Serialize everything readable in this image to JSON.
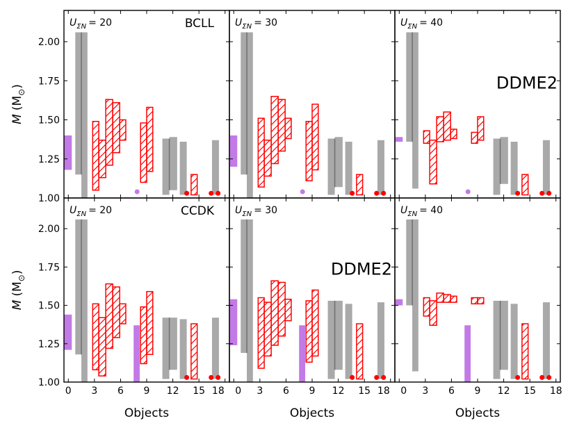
{
  "chart_data": {
    "type": "bar",
    "figure": {
      "xlabel": "Objects",
      "ylabel_main": "M",
      "ylabel_units": "(M",
      "ylabel_sub": "⊙",
      "ylabel_close": ")",
      "xlim": [
        -0.5,
        18.5
      ],
      "ylim": [
        1.0,
        2.2
      ],
      "xticks": [
        0,
        3,
        6,
        9,
        12,
        15,
        18
      ],
      "yticks": [
        1.0,
        1.25,
        1.5,
        1.75,
        2.0
      ],
      "ytick_labels": [
        "1.00",
        "1.25",
        "1.50",
        "1.75",
        "2.00"
      ],
      "model_label": "DDME2",
      "colors": {
        "gray": "#a9a9a9",
        "gray_mid": "#6f6f6f",
        "purple": "#c27ae6",
        "red": "#ff0000"
      }
    },
    "panels": [
      {
        "row": 0,
        "col": 0,
        "u_prefix": "U",
        "u_sub": "ΣN",
        "u_value": "= 20",
        "tag": "BCLL",
        "show_model": false,
        "gray_bars": [
          [
            0.8,
            1.5,
            1.15,
            2.06
          ],
          [
            1.5,
            2.2,
            1.0,
            2.06
          ],
          [
            10.8,
            11.6,
            1.02,
            1.38
          ],
          [
            11.6,
            12.5,
            1.05,
            1.39
          ],
          [
            12.8,
            13.6,
            1.02,
            1.36
          ],
          [
            16.5,
            17.3,
            1.02,
            1.37
          ]
        ],
        "purple_bars": [
          [
            -0.5,
            0.4,
            1.18,
            1.4
          ]
        ],
        "red_boxes": [
          [
            2.8,
            3.5,
            1.05,
            1.49
          ],
          [
            3.5,
            4.3,
            1.13,
            1.37
          ],
          [
            4.3,
            5.1,
            1.21,
            1.63
          ],
          [
            5.1,
            5.9,
            1.29,
            1.61
          ],
          [
            5.9,
            6.6,
            1.37,
            1.5
          ],
          [
            8.3,
            9.0,
            1.1,
            1.48
          ],
          [
            9.0,
            9.7,
            1.17,
            1.58
          ],
          [
            14.1,
            14.8,
            1.02,
            1.15
          ]
        ],
        "purple_dots": [
          [
            7.9,
            1.04
          ]
        ],
        "red_dots": [
          [
            13.6,
            1.03
          ],
          [
            16.4,
            1.03
          ],
          [
            17.2,
            1.03
          ]
        ]
      },
      {
        "row": 0,
        "col": 1,
        "u_prefix": "U",
        "u_sub": "ΣN",
        "u_value": "= 30",
        "tag": "",
        "show_model": false,
        "gray_bars": [
          [
            0.8,
            1.5,
            1.15,
            2.06
          ],
          [
            1.5,
            2.2,
            1.0,
            2.06
          ],
          [
            10.8,
            11.6,
            1.02,
            1.38
          ],
          [
            11.6,
            12.5,
            1.07,
            1.39
          ],
          [
            12.8,
            13.6,
            1.02,
            1.36
          ],
          [
            16.5,
            17.3,
            1.02,
            1.37
          ]
        ],
        "purple_bars": [
          [
            -0.5,
            0.4,
            1.2,
            1.4
          ]
        ],
        "red_boxes": [
          [
            2.8,
            3.5,
            1.07,
            1.51
          ],
          [
            3.5,
            4.3,
            1.14,
            1.37
          ],
          [
            4.3,
            5.1,
            1.22,
            1.65
          ],
          [
            5.1,
            5.9,
            1.3,
            1.63
          ],
          [
            5.9,
            6.6,
            1.38,
            1.51
          ],
          [
            8.3,
            9.0,
            1.11,
            1.49
          ],
          [
            9.0,
            9.7,
            1.18,
            1.6
          ],
          [
            14.1,
            14.8,
            1.02,
            1.15
          ]
        ],
        "purple_dots": [
          [
            7.9,
            1.04
          ]
        ],
        "red_dots": [
          [
            13.6,
            1.03
          ],
          [
            16.4,
            1.03
          ],
          [
            17.2,
            1.03
          ]
        ]
      },
      {
        "row": 0,
        "col": 2,
        "u_prefix": "U",
        "u_sub": "ΣN",
        "u_value": "= 40",
        "tag": "",
        "show_model": true,
        "gray_bars": [
          [
            0.8,
            1.5,
            1.36,
            2.06
          ],
          [
            1.5,
            2.2,
            1.06,
            2.06
          ],
          [
            10.8,
            11.6,
            1.02,
            1.38
          ],
          [
            11.6,
            12.5,
            1.09,
            1.39
          ],
          [
            12.8,
            13.6,
            1.02,
            1.36
          ],
          [
            16.5,
            17.3,
            1.02,
            1.37
          ]
        ],
        "purple_bars": [
          [
            -0.5,
            0.4,
            1.36,
            1.39
          ]
        ],
        "red_boxes": [
          [
            2.8,
            3.5,
            1.35,
            1.43
          ],
          [
            3.5,
            4.3,
            1.09,
            1.37
          ],
          [
            4.3,
            5.1,
            1.36,
            1.52
          ],
          [
            5.1,
            5.9,
            1.37,
            1.55
          ],
          [
            5.9,
            6.6,
            1.38,
            1.44
          ],
          [
            8.3,
            9.0,
            1.35,
            1.42
          ],
          [
            9.0,
            9.7,
            1.37,
            1.52
          ],
          [
            14.1,
            14.8,
            1.02,
            1.15
          ]
        ],
        "purple_dots": [
          [
            7.9,
            1.04
          ]
        ],
        "red_dots": [
          [
            13.6,
            1.03
          ],
          [
            16.4,
            1.03
          ],
          [
            17.2,
            1.03
          ]
        ]
      },
      {
        "row": 1,
        "col": 0,
        "u_prefix": "U",
        "u_sub": "ΣN",
        "u_value": "= 20",
        "tag": "CCDK",
        "show_model": false,
        "gray_bars": [
          [
            0.8,
            1.5,
            1.18,
            2.06
          ],
          [
            1.5,
            2.2,
            1.0,
            2.06
          ],
          [
            10.8,
            11.6,
            1.02,
            1.42
          ],
          [
            11.6,
            12.5,
            1.08,
            1.42
          ],
          [
            12.8,
            13.6,
            1.02,
            1.41
          ],
          [
            16.5,
            17.3,
            1.02,
            1.42
          ]
        ],
        "purple_bars": [
          [
            -0.5,
            0.4,
            1.21,
            1.44
          ],
          [
            7.5,
            8.2,
            1.0,
            1.37
          ]
        ],
        "red_boxes": [
          [
            2.8,
            3.5,
            1.08,
            1.51
          ],
          [
            3.5,
            4.3,
            1.04,
            1.42
          ],
          [
            4.3,
            5.1,
            1.22,
            1.64
          ],
          [
            5.1,
            5.9,
            1.29,
            1.62
          ],
          [
            5.9,
            6.6,
            1.38,
            1.51
          ],
          [
            8.3,
            9.0,
            1.12,
            1.49
          ],
          [
            9.0,
            9.7,
            1.18,
            1.59
          ],
          [
            14.1,
            14.8,
            1.02,
            1.38
          ]
        ],
        "purple_dots": [],
        "red_dots": [
          [
            13.6,
            1.03
          ],
          [
            16.4,
            1.03
          ],
          [
            17.2,
            1.03
          ]
        ]
      },
      {
        "row": 1,
        "col": 1,
        "u_prefix": "U",
        "u_sub": "ΣN",
        "u_value": "= 30",
        "tag": "",
        "show_model": true,
        "gray_bars": [
          [
            0.8,
            1.5,
            1.19,
            2.06
          ],
          [
            1.5,
            2.2,
            1.0,
            2.06
          ],
          [
            10.8,
            11.6,
            1.02,
            1.53
          ],
          [
            11.6,
            12.5,
            1.08,
            1.53
          ],
          [
            12.8,
            13.6,
            1.02,
            1.51
          ],
          [
            16.5,
            17.3,
            1.02,
            1.52
          ]
        ],
        "purple_bars": [
          [
            -0.5,
            0.4,
            1.24,
            1.54
          ],
          [
            7.5,
            8.2,
            1.0,
            1.37
          ]
        ],
        "red_boxes": [
          [
            2.8,
            3.5,
            1.09,
            1.55
          ],
          [
            3.5,
            4.3,
            1.17,
            1.52
          ],
          [
            4.3,
            5.1,
            1.24,
            1.66
          ],
          [
            5.1,
            5.9,
            1.3,
            1.65
          ],
          [
            5.9,
            6.6,
            1.4,
            1.54
          ],
          [
            8.3,
            9.0,
            1.13,
            1.53
          ],
          [
            9.0,
            9.7,
            1.17,
            1.6
          ],
          [
            14.1,
            14.8,
            1.02,
            1.38
          ]
        ],
        "purple_dots": [],
        "red_dots": [
          [
            13.6,
            1.03
          ],
          [
            16.4,
            1.03
          ],
          [
            17.2,
            1.03
          ]
        ]
      },
      {
        "row": 1,
        "col": 2,
        "u_prefix": "U",
        "u_sub": "ΣN",
        "u_value": "= 40",
        "tag": "",
        "show_model": false,
        "gray_bars": [
          [
            0.8,
            1.5,
            1.5,
            2.06
          ],
          [
            1.5,
            2.2,
            1.07,
            2.06
          ],
          [
            10.8,
            11.6,
            1.02,
            1.53
          ],
          [
            11.6,
            12.5,
            1.08,
            1.53
          ],
          [
            12.8,
            13.6,
            1.02,
            1.51
          ],
          [
            16.5,
            17.3,
            1.02,
            1.52
          ]
        ],
        "purple_bars": [
          [
            -0.5,
            0.4,
            1.5,
            1.54
          ],
          [
            7.5,
            8.2,
            1.0,
            1.37
          ]
        ],
        "red_boxes": [
          [
            2.8,
            3.5,
            1.43,
            1.55
          ],
          [
            3.5,
            4.3,
            1.37,
            1.53
          ],
          [
            4.3,
            5.1,
            1.52,
            1.58
          ],
          [
            5.1,
            5.9,
            1.52,
            1.57
          ],
          [
            5.9,
            6.6,
            1.52,
            1.56
          ],
          [
            8.3,
            9.0,
            1.51,
            1.55
          ],
          [
            9.0,
            9.7,
            1.51,
            1.55
          ],
          [
            14.1,
            14.8,
            1.02,
            1.38
          ]
        ],
        "purple_dots": [],
        "red_dots": [
          [
            13.6,
            1.03
          ],
          [
            16.4,
            1.03
          ],
          [
            17.2,
            1.03
          ]
        ]
      }
    ]
  }
}
